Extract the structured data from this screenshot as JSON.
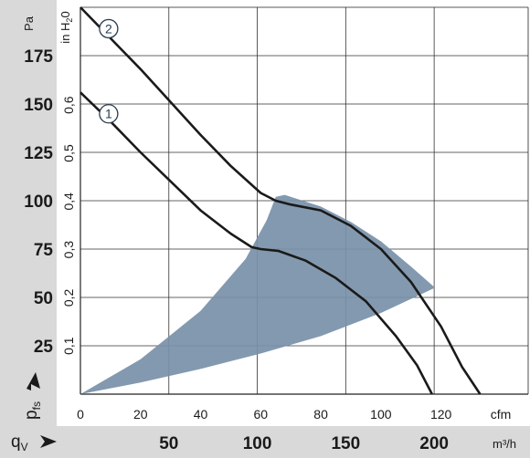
{
  "chart_data": {
    "type": "line",
    "title": "",
    "axes": {
      "y_pa": {
        "label": "Pa",
        "ticks": [
          25,
          50,
          75,
          100,
          125,
          150,
          175
        ],
        "range": [
          0,
          200
        ]
      },
      "y_inh2o": {
        "label": "in H",
        "subscript": "2",
        "label_tail": "0",
        "ticks": [
          "0,1",
          "0,2",
          "0,3",
          "0,4",
          "0,5",
          "0,6"
        ]
      },
      "x_cfm": {
        "label": "cfm",
        "ticks": [
          0,
          20,
          40,
          60,
          80,
          100,
          120
        ],
        "range": [
          0,
          149
        ]
      },
      "x_m3h": {
        "label": "m³/h",
        "ticks": [
          50,
          100,
          150,
          200
        ]
      }
    },
    "pressure_label": {
      "main": "p",
      "sub": "fs"
    },
    "flow_label": {
      "main": "q",
      "sub": "V"
    },
    "series": [
      {
        "marker": "1",
        "points": [
          [
            0,
            156
          ],
          [
            10,
            141
          ],
          [
            20,
            125
          ],
          [
            30,
            110
          ],
          [
            40,
            95
          ],
          [
            50,
            83
          ],
          [
            57,
            76
          ],
          [
            60,
            75
          ],
          [
            66,
            74
          ],
          [
            75,
            69
          ],
          [
            85,
            60
          ],
          [
            95,
            48
          ],
          [
            105,
            30
          ],
          [
            112,
            15
          ],
          [
            117,
            0
          ]
        ]
      },
      {
        "marker": "2",
        "points": [
          [
            0,
            200
          ],
          [
            10,
            184
          ],
          [
            20,
            168
          ],
          [
            30,
            151
          ],
          [
            40,
            134
          ],
          [
            50,
            118
          ],
          [
            60,
            104
          ],
          [
            65,
            100
          ],
          [
            70,
            98
          ],
          [
            80,
            95
          ],
          [
            90,
            87
          ],
          [
            100,
            75
          ],
          [
            110,
            58
          ],
          [
            120,
            35
          ],
          [
            127,
            14
          ],
          [
            133,
            0
          ]
        ]
      }
    ],
    "operating_range": {
      "upper_edge": [
        [
          0,
          0
        ],
        [
          20,
          18
        ],
        [
          40,
          43
        ],
        [
          55,
          70
        ],
        [
          62,
          90
        ],
        [
          65,
          102
        ],
        [
          68,
          103
        ],
        [
          80,
          97
        ],
        [
          90,
          89
        ],
        [
          100,
          79
        ],
        [
          110,
          66
        ],
        [
          118,
          55
        ]
      ],
      "lower_edge": [
        [
          118,
          55
        ],
        [
          100,
          42
        ],
        [
          80,
          30
        ],
        [
          60,
          21
        ],
        [
          40,
          13
        ],
        [
          20,
          6
        ],
        [
          0,
          0
        ]
      ]
    }
  }
}
